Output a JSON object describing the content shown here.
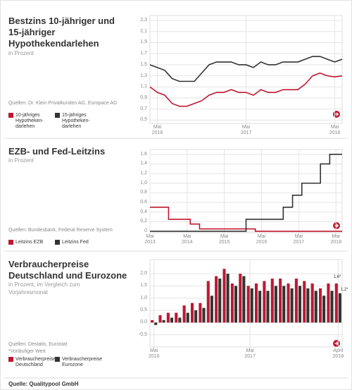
{
  "chart_data": [
    {
      "type": "line",
      "title": "Bestzins 10-jähriger und 15-jähriger Hypothekendarlehen",
      "subtitle": "in Prozent",
      "source": "Quellen: Dr. Klein Privatkunden AG, Europace AG",
      "categories": [
        null,
        "Mai 2016",
        null,
        null,
        null,
        null,
        null,
        null,
        null,
        null,
        null,
        null,
        null,
        "Mai 2017",
        null,
        null,
        null,
        null,
        null,
        null,
        null,
        null,
        null,
        null,
        null,
        "Mai 2018",
        null
      ],
      "series": [
        {
          "name": "10-jähriges Hypotheken-darlehen",
          "color": "#c0172f",
          "values": [
            1.1,
            1.0,
            0.95,
            0.8,
            0.75,
            0.75,
            0.8,
            0.85,
            0.95,
            1.0,
            1.0,
            1.05,
            1.0,
            1.0,
            0.95,
            1.05,
            1.0,
            1.0,
            1.05,
            1.05,
            1.05,
            1.15,
            1.3,
            1.35,
            1.3,
            1.28,
            1.3
          ]
        },
        {
          "name": "15-jähriges Hypotheken-darlehen",
          "color": "#333333",
          "values": [
            1.5,
            1.45,
            1.4,
            1.25,
            1.2,
            1.2,
            1.2,
            1.35,
            1.5,
            1.55,
            1.55,
            1.55,
            1.5,
            1.5,
            1.45,
            1.55,
            1.5,
            1.5,
            1.55,
            1.55,
            1.55,
            1.6,
            1.65,
            1.65,
            1.6,
            1.55,
            1.6
          ]
        }
      ],
      "ylim": [
        0.44,
        2.39
      ],
      "yticks": [
        {
          "value": 0.5,
          "label": "0,5"
        },
        {
          "value": 0.7,
          "label": "0,7"
        },
        {
          "value": 0.9,
          "label": "0,9"
        },
        {
          "value": 1.1,
          "label": "1,1"
        },
        {
          "value": 1.3,
          "label": "1,3"
        },
        {
          "value": 1.5,
          "label": "1,5"
        },
        {
          "value": 1.7,
          "label": "1,7"
        },
        {
          "value": 1.9,
          "label": "1,9"
        },
        {
          "value": 2.1,
          "label": "2,1"
        },
        {
          "value": 2.3,
          "label": "2,3"
        }
      ],
      "grid": true
    },
    {
      "type": "line",
      "step": true,
      "title": "EZB- und Fed-Leitzins",
      "subtitle": "in Prozent",
      "source": "Quellen: Bundesbank, Federal Reserve System",
      "categories": [
        "Mai 2013",
        null,
        null,
        null,
        null,
        null,
        null,
        null,
        null,
        null,
        null,
        null,
        "Mai 2014",
        null,
        null,
        null,
        null,
        null,
        null,
        null,
        null,
        null,
        null,
        null,
        "Mai 2015",
        null,
        null,
        null,
        null,
        null,
        null,
        null,
        null,
        null,
        null,
        null,
        "Mai 2016",
        null,
        null,
        null,
        null,
        null,
        null,
        null,
        null,
        null,
        null,
        null,
        "Mai 2017",
        null,
        null,
        null,
        null,
        null,
        null,
        null,
        null,
        null,
        null,
        null,
        "Mai 2018",
        null,
        null
      ],
      "series": [
        {
          "name": "Leitzins EZB",
          "color": "#c0172f",
          "values": [
            0.5,
            0.5,
            0.5,
            0.5,
            0.5,
            0.5,
            0.25,
            0.25,
            0.25,
            0.25,
            0.25,
            0.25,
            0.25,
            0.15,
            0.15,
            0.15,
            0.05,
            0.05,
            0.05,
            0.05,
            0.05,
            0.05,
            0.05,
            0.05,
            0.05,
            0.05,
            0.05,
            0.05,
            0.05,
            0.05,
            0.05,
            0.05,
            0.05,
            0.05,
            0,
            0,
            0,
            0,
            0,
            0,
            0,
            0,
            0,
            0,
            0,
            0,
            0,
            0,
            0,
            0,
            0,
            0,
            0,
            0,
            0,
            0,
            0,
            0,
            0,
            0,
            0,
            0,
            0
          ]
        },
        {
          "name": "Leitzins Fed",
          "color": "#333333",
          "values": [
            0,
            0,
            0,
            0,
            0,
            0,
            0,
            0,
            0,
            0,
            0,
            0,
            0,
            0,
            0,
            0,
            0,
            0,
            0,
            0,
            0,
            0,
            0,
            0,
            0,
            0,
            0,
            0,
            0,
            0,
            0,
            0.25,
            0.25,
            0.25,
            0.25,
            0.25,
            0.25,
            0.25,
            0.25,
            0.25,
            0.25,
            0.25,
            0.25,
            0.5,
            0.5,
            0.5,
            0.75,
            0.75,
            0.75,
            1,
            1,
            1,
            1,
            1,
            1,
            1.4,
            1.4,
            1.4,
            1.6,
            1.6,
            1.6,
            1.6,
            1.6
          ]
        }
      ],
      "ylim": [
        -0.03,
        1.7
      ],
      "yticks": [
        0,
        {
          "value": 0.2,
          "label": "0,2"
        },
        {
          "value": 0.4,
          "label": "0,4"
        },
        {
          "value": 0.6,
          "label": "0,6"
        },
        {
          "value": 0.8,
          "label": "0,8"
        },
        {
          "value": 1,
          "label": "1,0"
        },
        {
          "value": 1.2,
          "label": "1,2"
        },
        {
          "value": 1.4,
          "label": "1,4"
        },
        {
          "value": 1.6,
          "label": "1,6"
        }
      ],
      "grid": true
    },
    {
      "type": "bar",
      "title": "Verbraucherpreise Deutschland und Eurozone",
      "subtitle": "in Prozent, im Vergleich zum Vorjahresmonat",
      "source": "Quellen: Destatis, Eurostat",
      "note": "*Vorläufiger Wert",
      "categories": [
        "Mai 2016",
        null,
        null,
        null,
        null,
        null,
        null,
        null,
        null,
        null,
        null,
        null,
        "Mai 2017",
        null,
        null,
        null,
        null,
        null,
        null,
        null,
        null,
        null,
        null,
        "April 2018"
      ],
      "series": [
        {
          "name": "Verbraucherpreise Deutschland",
          "color": "#c0172f",
          "values": [
            0.1,
            0.3,
            0.4,
            0.4,
            0.7,
            0.8,
            0.8,
            1.7,
            1.9,
            2.2,
            1.6,
            2.0,
            1.5,
            1.6,
            1.7,
            1.8,
            1.8,
            1.6,
            1.8,
            1.7,
            1.6,
            1.4,
            1.6,
            1.6
          ],
          "value_labels": [
            null,
            null,
            null,
            null,
            null,
            null,
            null,
            null,
            null,
            null,
            null,
            null,
            null,
            null,
            null,
            null,
            null,
            null,
            null,
            null,
            null,
            null,
            null,
            "1,6*"
          ]
        },
        {
          "name": "Verbraucherpreise Eurozone",
          "color": "#333333",
          "values": [
            -0.1,
            0.1,
            0.2,
            0.2,
            0.4,
            0.5,
            0.6,
            1.1,
            1.8,
            2.0,
            1.5,
            1.9,
            1.4,
            1.3,
            1.3,
            1.5,
            1.5,
            1.4,
            1.5,
            1.4,
            1.3,
            1.1,
            1.3,
            1.2
          ],
          "value_labels": [
            null,
            null,
            null,
            null,
            null,
            null,
            null,
            null,
            null,
            null,
            null,
            null,
            null,
            null,
            null,
            null,
            null,
            null,
            null,
            null,
            null,
            null,
            null,
            "1,2*"
          ]
        }
      ],
      "ylim": [
        -1.0,
        2.58
      ],
      "yticks": [
        {
          "value": -0.5,
          "label": "-0,5"
        },
        {
          "value": 0,
          "label": "0,0"
        },
        {
          "value": 0.5,
          "label": "0,5"
        },
        {
          "value": 1,
          "label": "1,0"
        },
        {
          "value": 1.5,
          "label": "1,5"
        },
        {
          "value": 2,
          "label": "2,0"
        }
      ],
      "grid": true
    }
  ],
  "footer": "Quelle: Qualitypool GmbH"
}
